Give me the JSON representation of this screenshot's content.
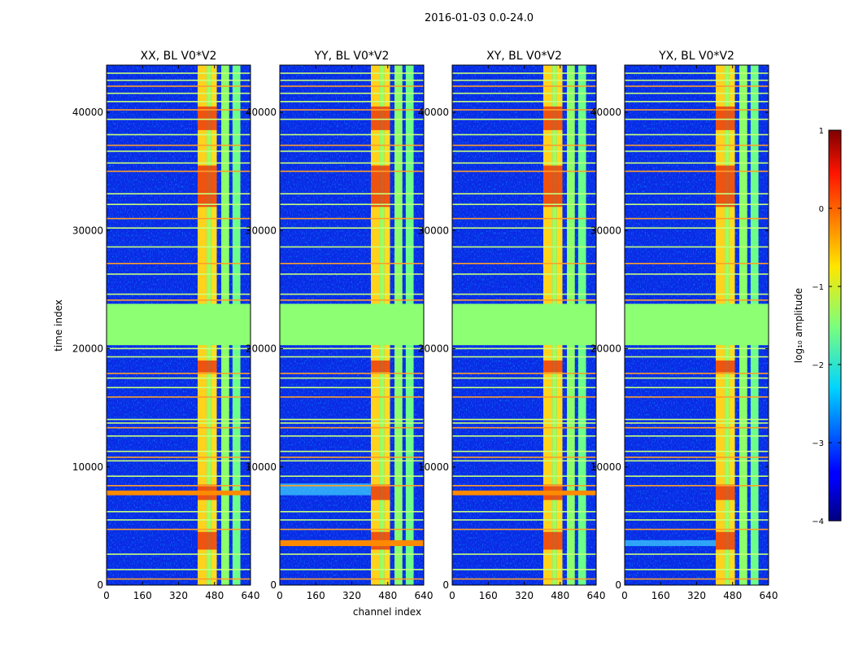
{
  "chart_data": {
    "type": "heatmap",
    "suptitle": "2016-01-03 0.0-24.0",
    "xlabel": "channel index",
    "ylabel": "time index",
    "xlim": [
      0,
      640
    ],
    "ylim": [
      0,
      44000
    ],
    "x_ticks": [
      0,
      160,
      320,
      480,
      640
    ],
    "y_ticks": [
      0,
      10000,
      20000,
      30000,
      40000
    ],
    "panels": [
      {
        "title": "XX, BL V0*V2",
        "hot_rows": [
          [
            7600,
            8000
          ]
        ],
        "cyan_band": []
      },
      {
        "title": "YY, BL V0*V2",
        "hot_rows": [
          [
            3300,
            3800
          ]
        ],
        "cyan_band": [
          [
            7600,
            8600
          ]
        ]
      },
      {
        "title": "XY, BL V0*V2",
        "hot_rows": [
          [
            7600,
            8000
          ]
        ],
        "cyan_band": []
      },
      {
        "title": "YX, BL V0*V2",
        "hot_rows": [],
        "cyan_band": [
          [
            3300,
            3800
          ]
        ]
      }
    ],
    "features": {
      "rfi_channel_bands": [
        [
          405,
          445
        ],
        [
          445,
          465
        ],
        [
          465,
          490
        ],
        [
          510,
          545
        ],
        [
          560,
          595
        ]
      ],
      "saturated_time_band": [
        20300,
        23800
      ],
      "strong_time_blocks": [
        [
          3000,
          4500
        ],
        [
          7200,
          8500
        ],
        [
          18000,
          19000
        ],
        [
          32000,
          35500
        ],
        [
          38500,
          40500
        ]
      ],
      "horizontal_flag_rows": [
        500,
        1300,
        2600,
        4700,
        5500,
        6200,
        8400,
        9200,
        10500,
        10800,
        11300,
        12600,
        13300,
        13700,
        14000,
        15900,
        16700,
        17500,
        17900,
        19300,
        20000,
        24100,
        24600,
        26300,
        27200,
        28600,
        30200,
        31000,
        32200,
        33100,
        35000,
        35700,
        36700,
        37200,
        38100,
        39400,
        40200,
        40900,
        41600,
        42200,
        42700,
        43300
      ]
    },
    "colorbar": {
      "label": "log₁₀ amplitude",
      "min": -4,
      "max": 1,
      "ticks": [
        1,
        0,
        -1,
        -2,
        -3,
        -4
      ],
      "tick_labels": [
        "1",
        "0",
        "−1",
        "−2",
        "−3",
        "−4"
      ],
      "colormap": "jet"
    }
  }
}
